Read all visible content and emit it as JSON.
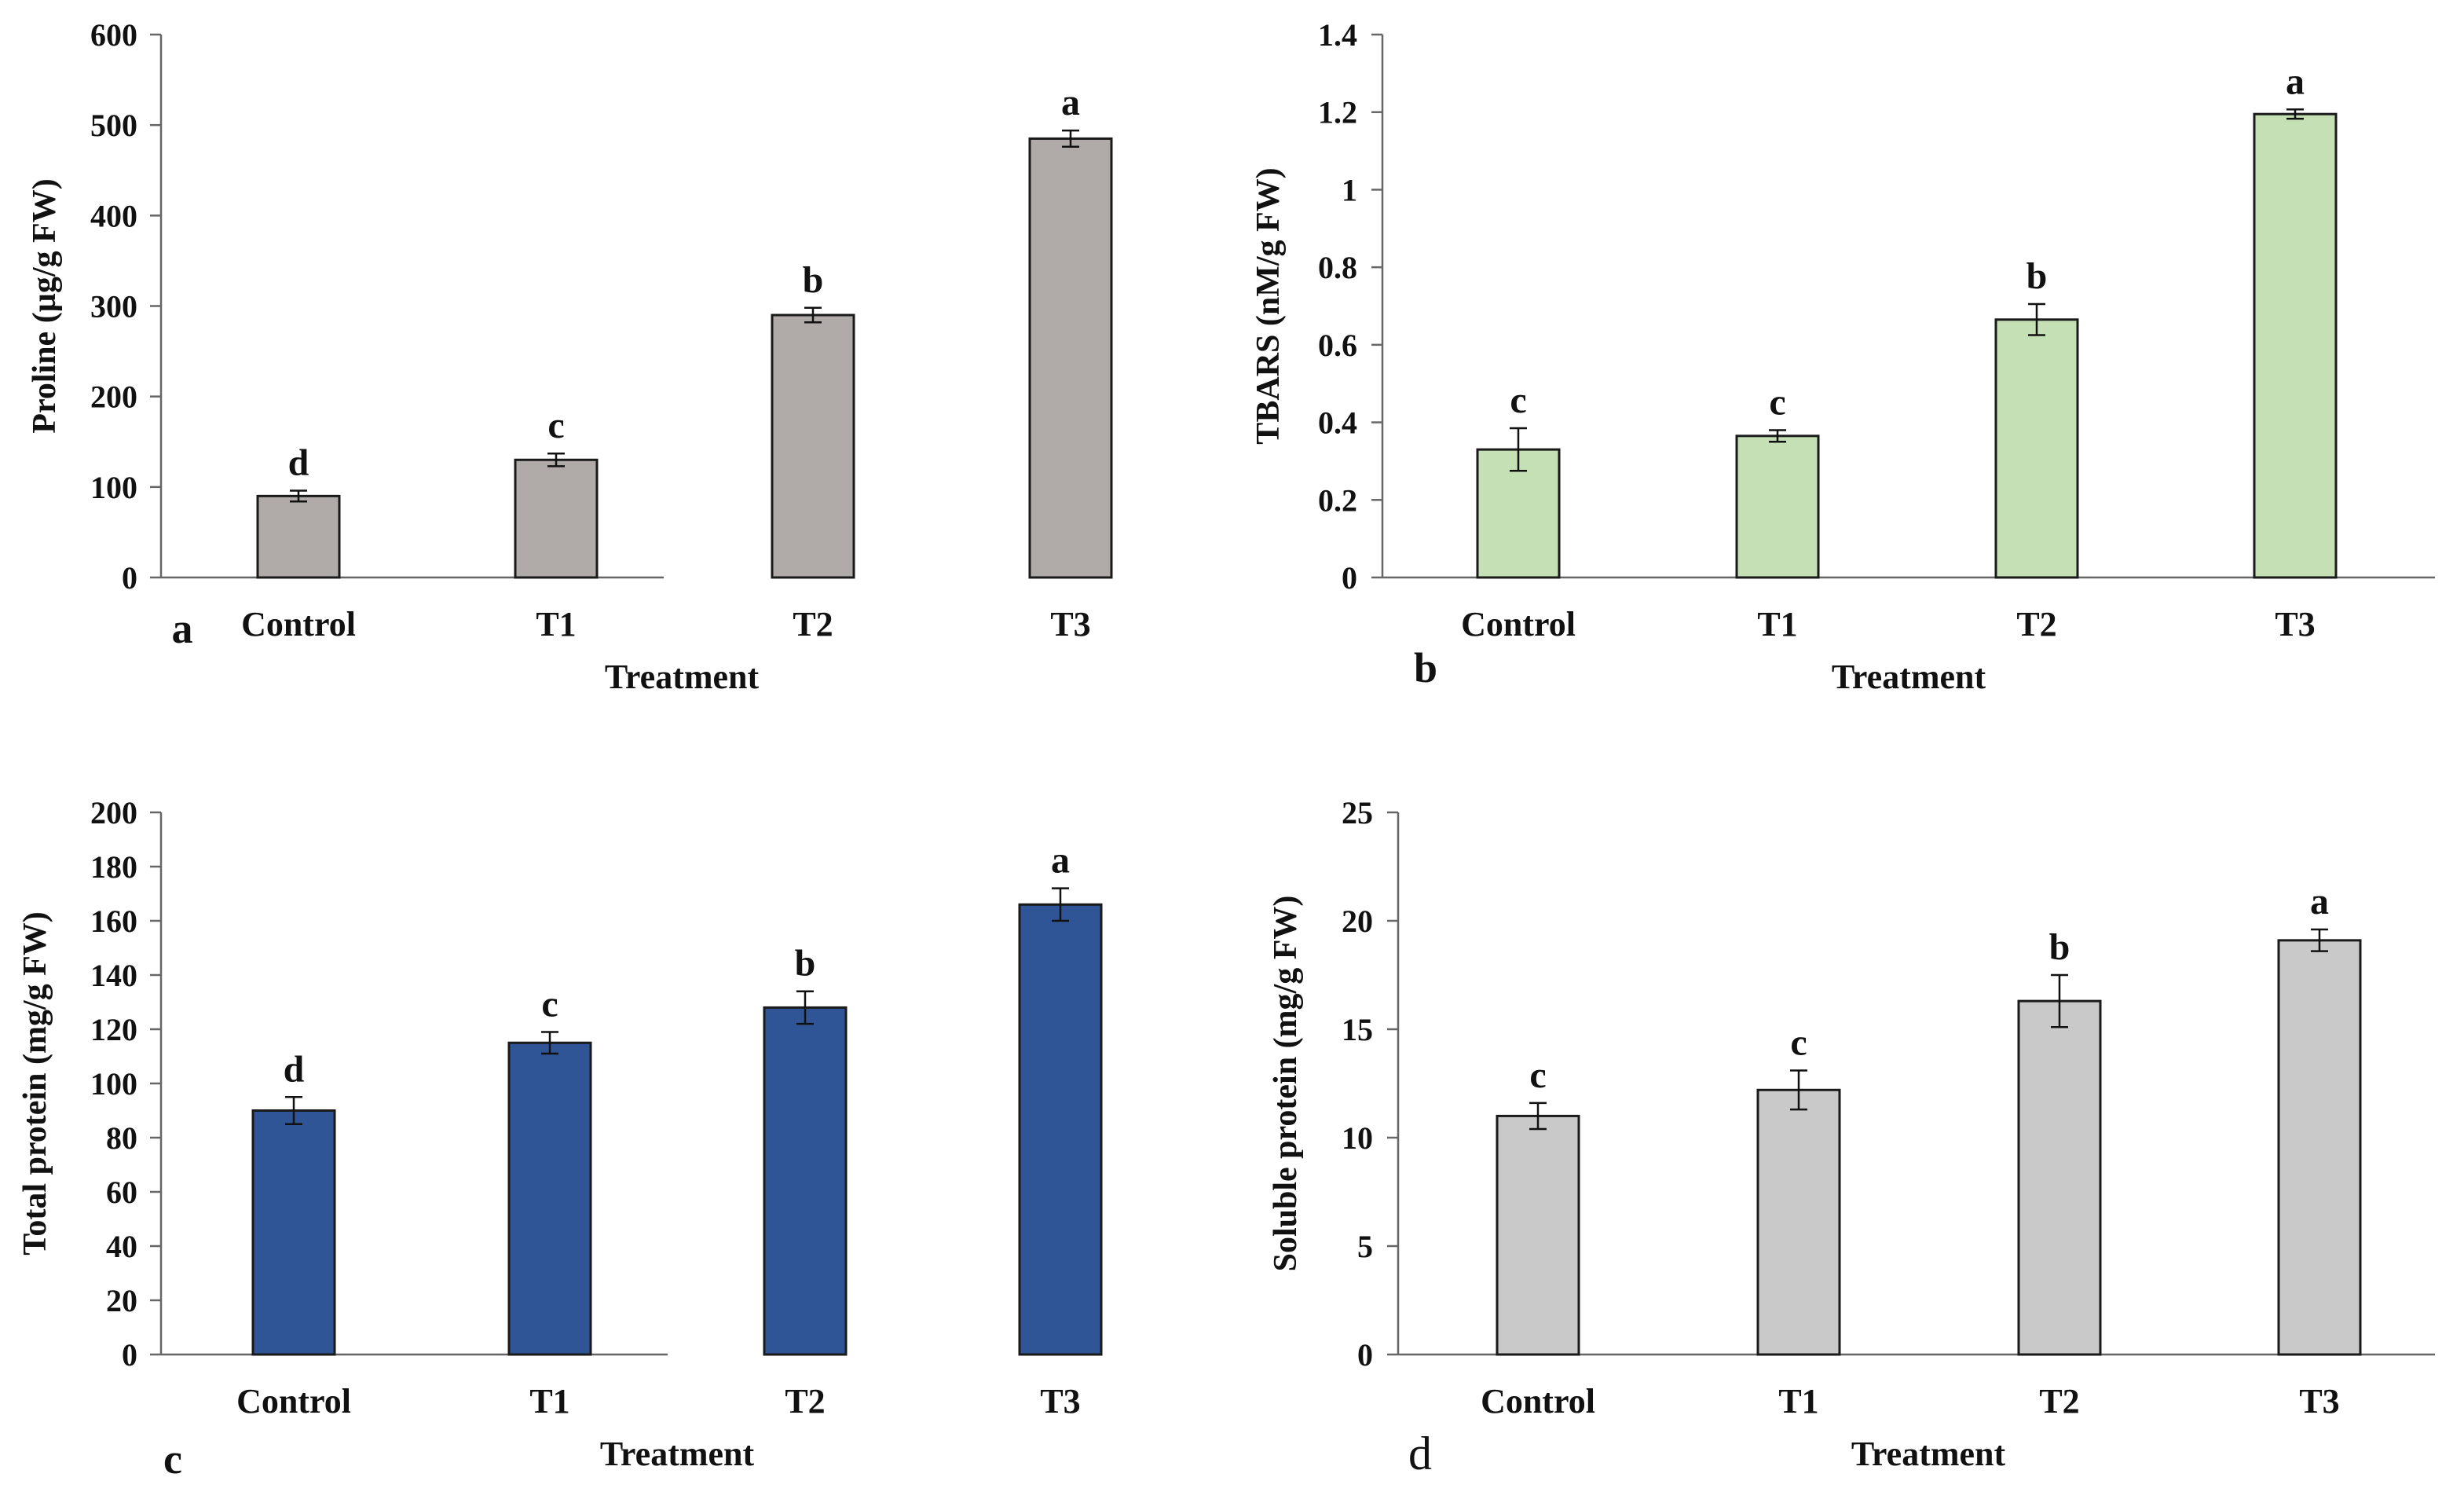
{
  "chart_data": [
    {
      "type": "bar",
      "panel_label": "a",
      "categories": [
        "Control",
        "T1",
        "T2",
        "T3"
      ],
      "values": [
        90,
        130,
        290,
        485
      ],
      "errors": [
        6,
        7,
        8,
        9
      ],
      "significance": [
        "d",
        "c",
        "b",
        "a"
      ],
      "xlabel": "Treatment",
      "ylabel": "Proline  (µg/g FW)",
      "ylim": [
        0,
        600
      ],
      "yticks": [
        0,
        100,
        200,
        300,
        400,
        500,
        600
      ],
      "ytick_labels": [
        "0",
        "100",
        "200",
        "300",
        "400",
        "500",
        "600"
      ],
      "bar_color": "#b0aba9"
    },
    {
      "type": "bar",
      "panel_label": "b",
      "categories": [
        "Control",
        "T1",
        "T2",
        "T3"
      ],
      "values": [
        0.33,
        0.365,
        0.665,
        1.195
      ],
      "errors": [
        0.055,
        0.015,
        0.04,
        0.012
      ],
      "significance": [
        "c",
        "c",
        "b",
        "a"
      ],
      "xlabel": "Treatment",
      "ylabel": "TBARS (nM/g FW)",
      "ylim": [
        0,
        1.4
      ],
      "yticks": [
        0,
        0.2,
        0.4,
        0.6,
        0.8,
        1,
        1.2,
        1.4
      ],
      "ytick_labels": [
        "0",
        "0.2",
        "0.4",
        "0.6",
        "0.8",
        "1",
        "1.2",
        "1.4"
      ],
      "bar_color": "#c5e0b4"
    },
    {
      "type": "bar",
      "panel_label": "c",
      "categories": [
        "Control",
        "T1",
        "T2",
        "T3"
      ],
      "values": [
        90,
        115,
        128,
        166
      ],
      "errors": [
        5,
        4,
        6,
        6
      ],
      "significance": [
        "d",
        "c",
        "b",
        "a"
      ],
      "xlabel": "Treatment",
      "ylabel": "Total protein  (mg/g  FW)",
      "ylim": [
        0,
        200
      ],
      "yticks": [
        0,
        20,
        40,
        60,
        80,
        100,
        120,
        140,
        160,
        180,
        200
      ],
      "ytick_labels": [
        "0",
        "20",
        "40",
        "60",
        "80",
        "100",
        "120",
        "140",
        "160",
        "180",
        "200"
      ],
      "bar_color": "#2f5597"
    },
    {
      "type": "bar",
      "panel_label": "d",
      "categories": [
        "Control",
        "T1",
        "T2",
        "T3"
      ],
      "values": [
        11,
        12.2,
        16.3,
        19.1
      ],
      "errors": [
        0.6,
        0.9,
        1.2,
        0.5
      ],
      "significance": [
        "c",
        "c",
        "b",
        "a"
      ],
      "xlabel": "Treatment",
      "ylabel": "Soluble  protein  (mg/g  FW)",
      "ylim": [
        0,
        25
      ],
      "yticks": [
        0,
        5,
        10,
        15,
        20,
        25
      ],
      "ytick_labels": [
        "0",
        "5",
        "10",
        "15",
        "20",
        "25"
      ],
      "bar_color": "#c9c9c9"
    }
  ]
}
